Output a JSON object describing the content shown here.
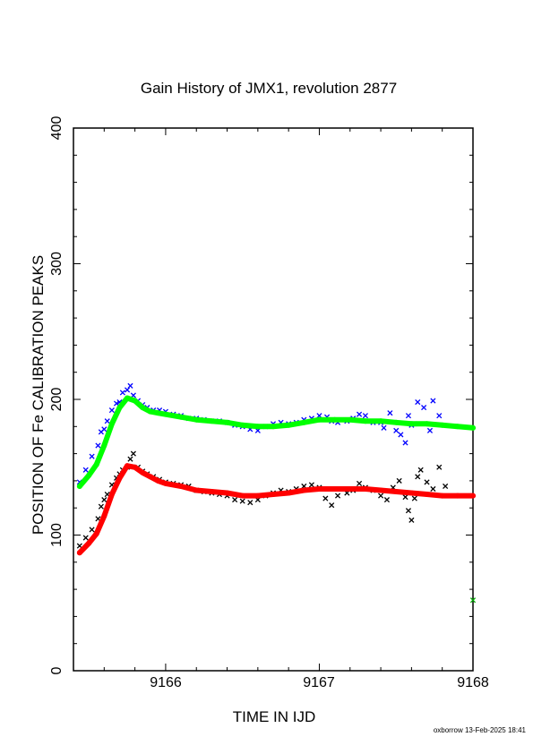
{
  "chart_data": {
    "type": "scatter",
    "title": "Gain History of JMX1, revolution 2877",
    "xlabel": "TIME IN IJD",
    "ylabel": "POSITION OF Fe CALIBRATION PEAKS",
    "xlim": [
      9165.4,
      9168.0
    ],
    "ylim": [
      0,
      400
    ],
    "x_ticks": [
      "9166",
      "9167",
      "9168"
    ],
    "y_ticks": [
      "0",
      "100",
      "200",
      "300",
      "400"
    ],
    "grid": false,
    "footer": "oxborrow 13-Feb-2025 18:41",
    "series": [
      {
        "color": "#0000ff",
        "marker": "x",
        "x": [
          9165.44,
          9165.48,
          9165.52,
          9165.56,
          9165.58,
          9165.6,
          9165.62,
          9165.65,
          9165.68,
          9165.7,
          9165.72,
          9165.75,
          9165.77,
          9165.79,
          9165.82,
          9165.85,
          9165.88,
          9165.92,
          9165.96,
          9166.0,
          9166.05,
          9166.1,
          9166.15,
          9166.2,
          9166.25,
          9166.3,
          9166.35,
          9166.4,
          9166.45,
          9166.5,
          9166.55,
          9166.6,
          9166.65,
          9166.7,
          9166.75,
          9166.8,
          9166.85,
          9166.9,
          9166.95,
          9167.0,
          9167.05,
          9167.08,
          9167.12,
          9167.18,
          9167.22,
          9167.26,
          9167.3,
          9167.35,
          9167.4,
          9167.42,
          9167.46,
          9167.5,
          9167.53,
          9167.56,
          9167.58,
          9167.6,
          9167.62,
          9167.64,
          9167.68,
          9167.72,
          9167.74,
          9167.78
        ],
        "y": [
          139,
          148,
          158,
          166,
          176,
          178,
          184,
          192,
          197,
          198,
          205,
          207,
          210,
          203,
          199,
          196,
          194,
          192,
          192,
          191,
          189,
          188,
          186,
          186,
          185,
          184,
          184,
          183,
          181,
          180,
          178,
          177,
          180,
          182,
          183,
          182,
          183,
          185,
          186,
          188,
          187,
          184,
          183,
          184,
          186,
          189,
          188,
          183,
          183,
          179,
          190,
          177,
          174,
          168,
          188,
          181,
          182,
          198,
          194,
          177,
          199,
          188
        ]
      },
      {
        "color": "#000000",
        "marker": "x",
        "x": [
          9165.44,
          9165.48,
          9165.52,
          9165.56,
          9165.58,
          9165.6,
          9165.62,
          9165.65,
          9165.68,
          9165.7,
          9165.72,
          9165.75,
          9165.77,
          9165.79,
          9165.82,
          9165.85,
          9165.88,
          9165.92,
          9165.96,
          9166.0,
          9166.05,
          9166.1,
          9166.15,
          9166.2,
          9166.25,
          9166.3,
          9166.35,
          9166.4,
          9166.45,
          9166.5,
          9166.55,
          9166.6,
          9166.65,
          9166.7,
          9166.75,
          9166.8,
          9166.85,
          9166.9,
          9166.95,
          9167.0,
          9167.04,
          9167.08,
          9167.12,
          9167.18,
          9167.22,
          9167.26,
          9167.3,
          9167.35,
          9167.4,
          9167.44,
          9167.48,
          9167.52,
          9167.56,
          9167.58,
          9167.6,
          9167.62,
          9167.64,
          9167.66,
          9167.7,
          9167.74,
          9167.78,
          9167.82
        ],
        "y": [
          92,
          98,
          104,
          112,
          121,
          126,
          130,
          137,
          142,
          145,
          148,
          150,
          156,
          160,
          150,
          147,
          145,
          143,
          141,
          139,
          138,
          137,
          136,
          133,
          132,
          131,
          130,
          129,
          126,
          125,
          124,
          126,
          129,
          131,
          133,
          132,
          134,
          136,
          137,
          135,
          127,
          122,
          129,
          131,
          133,
          138,
          135,
          133,
          129,
          126,
          135,
          140,
          128,
          118,
          111,
          127,
          143,
          148,
          139,
          134,
          150,
          136
        ]
      },
      {
        "color": "#00ff00",
        "marker": "line",
        "x": [
          9165.44,
          9165.5,
          9165.55,
          9165.6,
          9165.65,
          9165.7,
          9165.75,
          9165.8,
          9165.85,
          9165.9,
          9165.95,
          9166.0,
          9166.1,
          9166.2,
          9166.3,
          9166.4,
          9166.5,
          9166.6,
          9166.7,
          9166.8,
          9166.9,
          9167.0,
          9167.1,
          9167.2,
          9167.3,
          9167.4,
          9167.5,
          9167.6,
          9167.7,
          9167.8,
          9167.9,
          9168.0
        ],
        "y": [
          136,
          144,
          152,
          166,
          182,
          194,
          201,
          199,
          194,
          191,
          190,
          189,
          187,
          185,
          184,
          183,
          181,
          180,
          180,
          181,
          183,
          185,
          185,
          185,
          184,
          184,
          183,
          182,
          182,
          181,
          180,
          179
        ]
      },
      {
        "color": "#ff0000",
        "marker": "line",
        "x": [
          9165.44,
          9165.5,
          9165.55,
          9165.6,
          9165.65,
          9165.7,
          9165.75,
          9165.8,
          9165.85,
          9165.9,
          9165.95,
          9166.0,
          9166.1,
          9166.2,
          9166.3,
          9166.4,
          9166.5,
          9166.6,
          9166.7,
          9166.8,
          9166.9,
          9167.0,
          9167.1,
          9167.2,
          9167.3,
          9167.4,
          9167.5,
          9167.6,
          9167.7,
          9167.8,
          9167.9,
          9168.0
        ],
        "y": [
          87,
          94,
          101,
          114,
          130,
          142,
          151,
          150,
          146,
          143,
          140,
          138,
          136,
          133,
          132,
          131,
          129,
          129,
          130,
          131,
          133,
          134,
          134,
          134,
          134,
          133,
          132,
          131,
          130,
          129,
          129,
          129
        ]
      },
      {
        "color": "#00aa00",
        "marker": "x",
        "x": [
          9168.0
        ],
        "y": [
          52
        ]
      }
    ]
  }
}
